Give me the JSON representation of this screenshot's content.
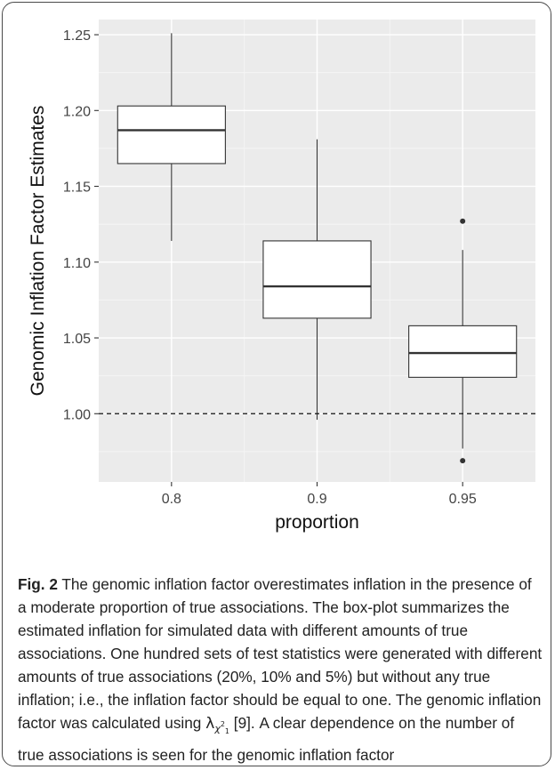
{
  "chart_data": {
    "type": "box",
    "xlabel": "proportion",
    "ylabel": "Genomic Inflation Factor Estimates",
    "categories": [
      "0.8",
      "0.9",
      "0.95"
    ],
    "ylim": [
      0.955,
      1.26
    ],
    "yticks": [
      1.0,
      1.05,
      1.1,
      1.15,
      1.2,
      1.25
    ],
    "ytick_labels": [
      "1.00",
      "1.05",
      "1.10",
      "1.15",
      "1.20",
      "1.25"
    ],
    "boxes": [
      {
        "category": "0.8",
        "min": 1.114,
        "q1": 1.165,
        "median": 1.187,
        "q3": 1.203,
        "max": 1.251,
        "outliers": []
      },
      {
        "category": "0.9",
        "min": 0.996,
        "q1": 1.063,
        "median": 1.084,
        "q3": 1.114,
        "max": 1.181,
        "outliers": []
      },
      {
        "category": "0.95",
        "min": 0.977,
        "q1": 1.024,
        "median": 1.04,
        "q3": 1.058,
        "max": 1.108,
        "outliers": [
          1.127,
          0.969
        ]
      }
    ],
    "reference_line": {
      "y": 1.0,
      "style": "dashed"
    },
    "grid": true,
    "colors": {
      "panel": "#ebebeb",
      "grid_major": "#ffffff",
      "grid_minor": "#f5f5f5",
      "box": "#333333"
    }
  },
  "caption": {
    "fig_label": "Fig. 2",
    "text_before": " The genomic inflation factor overestimates inflation in the presence of a moderate proportion of true associations. The box-plot summarizes the estimated inflation for simulated data with different amounts of true associations. One hundred sets of test statistics were generated with different amounts of true associations (20%, 10% and 5%) but without any true inflation; i.e., the inflation factor should be equal to one. The genomic inflation factor was calculated using ",
    "lambda": "λ",
    "chi": "χ",
    "chi_sup": "2",
    "chi_sub": "1",
    "text_after": " [9]. A clear dependence on the number of true associations is seen for the genomic inflation factor"
  }
}
